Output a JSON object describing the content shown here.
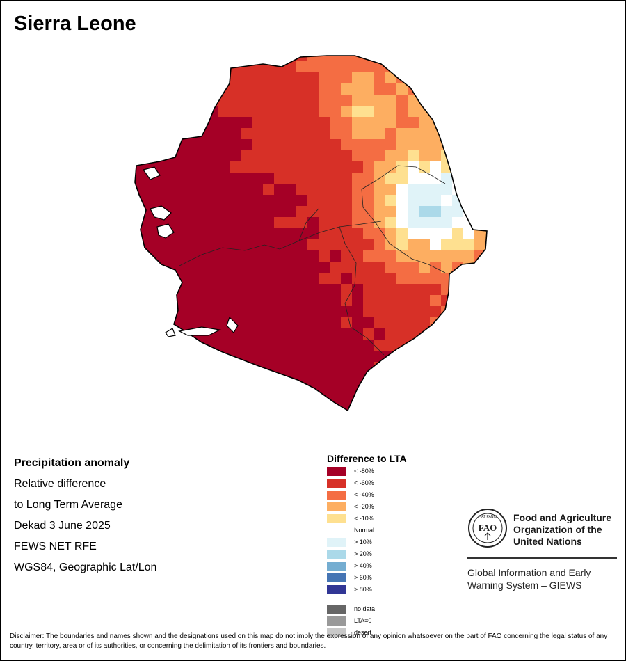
{
  "title": "Sierra Leone",
  "info": {
    "heading": "Precipitation anomaly",
    "line1": "Relative difference",
    "line2": "to Long Term Average",
    "period": "Dekad 3 June 2025",
    "product": "FEWS NET RFE",
    "projection": "WGS84, Geographic Lat/Lon"
  },
  "legend": {
    "title": "Difference to LTA",
    "items": [
      {
        "label": "< -80%",
        "color": "#a50026"
      },
      {
        "label": "< -60%",
        "color": "#d73027"
      },
      {
        "label": "< -40%",
        "color": "#f46d43"
      },
      {
        "label": "< -20%",
        "color": "#fdae61"
      },
      {
        "label": "< -10%",
        "color": "#fee090"
      },
      {
        "label": "Normal",
        "color": "#ffffff"
      },
      {
        "label": "> 10%",
        "color": "#e0f3f8"
      },
      {
        "label": "> 20%",
        "color": "#abd9e9"
      },
      {
        "label": "> 40%",
        "color": "#74add1"
      },
      {
        "label": "> 60%",
        "color": "#4575b4"
      },
      {
        "label": "> 80%",
        "color": "#313695"
      }
    ],
    "extra": [
      {
        "label": "no data",
        "color": "#666666"
      },
      {
        "label": "LTA=0",
        "color": "#999999"
      },
      {
        "label": "desert",
        "color": "#c8c8c8"
      }
    ]
  },
  "org": {
    "name": "Food and Agriculture Organization of the United Nations",
    "logo_text": "FAO",
    "logo_motto": "FIAT PANIS",
    "system": "Global Information and Early Warning System – GIEWS"
  },
  "disclaimer": "Disclaimer: The boundaries and names shown and the designations used on this map do not imply the expression of any opinion whatsoever on the part of FAO concerning the legal status of any country, territory, area or of its authorities, or concerning the delimitation of its frontiers and boundaries."
}
